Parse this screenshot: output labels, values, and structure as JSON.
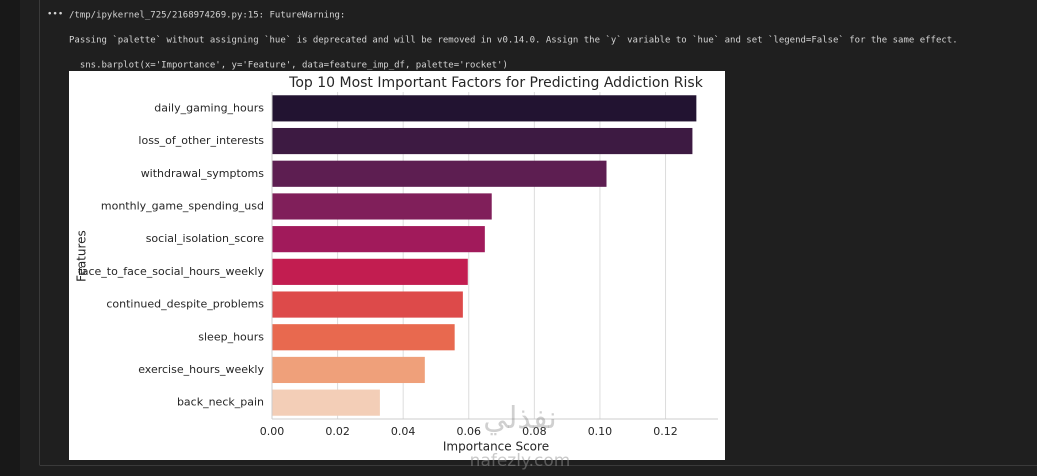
{
  "menu_icon": "•••",
  "output_lines": [
    "/tmp/ipykernel_725/2168974269.py:15: FutureWarning:",
    "Passing `palette` without assigning `hue` is deprecated and will be removed in v0.14.0. Assign the `y` variable to `hue` and set `legend=False` for the same effect.",
    "  sns.barplot(x='Importance', y='Feature', data=feature_imp_df, palette='rocket')"
  ],
  "watermark": {
    "arabic": "نفذلي",
    "latin": "nafezly.com"
  },
  "chart_data": {
    "type": "barh",
    "title": "Top 10 Most Important Factors for Predicting Addiction Risk",
    "x_label": "Importance Score",
    "y_label": "Features",
    "categories": [
      "daily_gaming_hours",
      "loss_of_other_interests",
      "withdrawal_symptoms",
      "monthly_game_spending_usd",
      "social_isolation_score",
      "face_to_face_social_hours_weekly",
      "continued_despite_problems",
      "sleep_hours",
      "exercise_hours_weekly",
      "back_neck_pain"
    ],
    "values": [
      0.1294,
      0.1282,
      0.102,
      0.067,
      0.0649,
      0.0597,
      0.0582,
      0.0557,
      0.0466,
      0.0329
    ],
    "colors": [
      "#221331",
      "#3d1a42",
      "#5d1e51",
      "#801f5a",
      "#a11a5b",
      "#c21d50",
      "#dd4a4a",
      "#e8694f",
      "#efa07a",
      "#f3ceb7"
    ],
    "xlim": [
      0,
      0.136
    ],
    "xticks": [
      {
        "value": 0,
        "label": "0.00"
      },
      0.02,
      0.04,
      0.06,
      0.08,
      {
        "value": 0.1,
        "label": "0.10"
      },
      0.12
    ],
    "grid": true
  }
}
